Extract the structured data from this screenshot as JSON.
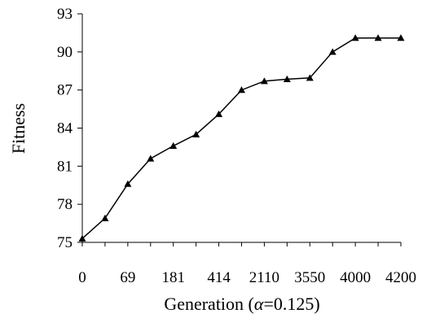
{
  "chart_data": {
    "type": "line",
    "xlabel_prefix": "Generation (",
    "xlabel_symbol": "α",
    "xlabel_suffix": "=0.125)",
    "ylabel": "Fitness",
    "ylim": [
      75,
      93
    ],
    "yticks": [
      75,
      78,
      81,
      84,
      87,
      90,
      93
    ],
    "xtick_labels": [
      "0",
      "69",
      "181",
      "414",
      "2110",
      "3550",
      "4000",
      "4200"
    ],
    "grid": false,
    "legend": "none",
    "series": [
      {
        "marker": "triangle",
        "color": "#000000",
        "values": [
          75.3,
          76.9,
          79.6,
          81.6,
          82.6,
          83.5,
          85.1,
          87.0,
          87.7,
          87.85,
          87.95,
          90.0,
          91.1,
          91.1,
          91.1
        ]
      }
    ]
  }
}
